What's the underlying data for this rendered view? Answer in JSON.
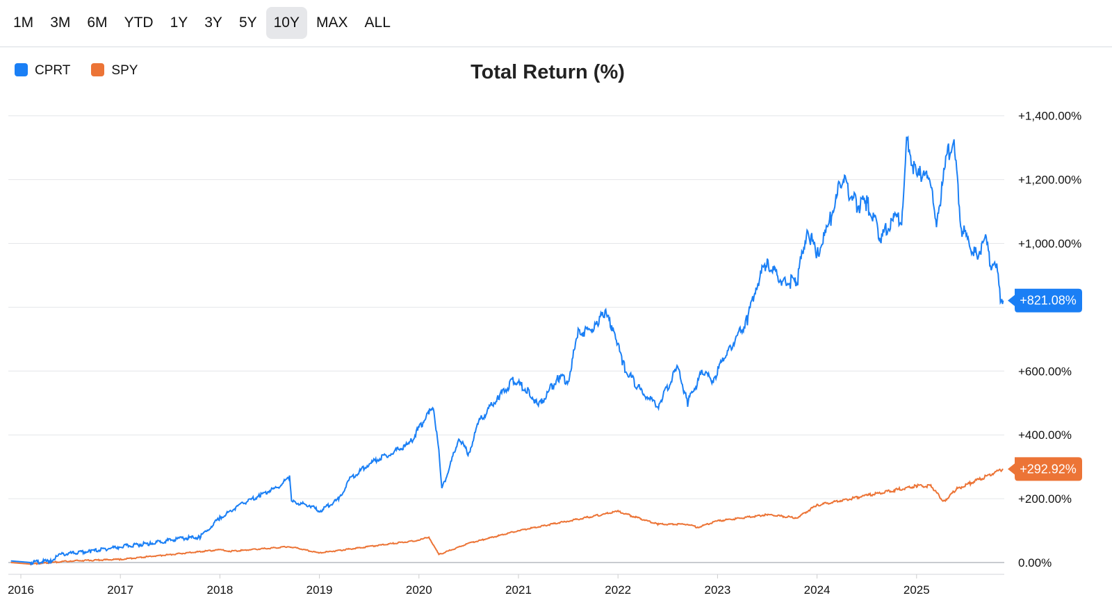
{
  "range_tabs": [
    "1M",
    "3M",
    "6M",
    "YTD",
    "1Y",
    "3Y",
    "5Y",
    "10Y",
    "MAX",
    "ALL"
  ],
  "active_tab": "10Y",
  "chart_data": {
    "type": "line",
    "title": "Total Return (%)",
    "ylim": [
      -20,
      1450
    ],
    "xlim": [
      2015.9,
      2025.87
    ],
    "y_ticks": [
      0,
      200,
      400,
      600,
      800,
      1000,
      1200,
      1400
    ],
    "y_tick_labels": [
      "0.00%",
      "+200.00%",
      "+400.00%",
      "+600.00%",
      "",
      "+1,000.00%",
      "+1,200.00%",
      "+1,400.00%"
    ],
    "x_ticks": [
      2016,
      2017,
      2018,
      2019,
      2020,
      2021,
      2022,
      2023,
      2024,
      2025
    ],
    "x_tick_labels": [
      "2016",
      "2017",
      "2018",
      "2019",
      "2020",
      "2021",
      "2022",
      "2023",
      "2024",
      "2025"
    ],
    "grid": true,
    "legend_position": "top-left",
    "series": [
      {
        "name": "CPRT",
        "color": "#1a7ff5",
        "last_label": "+821.08%",
        "x": [
          2015.9,
          2016.1,
          2016.3,
          2016.4,
          2016.7,
          2017.0,
          2017.3,
          2017.6,
          2017.8,
          2017.9,
          2018.0,
          2018.2,
          2018.4,
          2018.6,
          2018.7,
          2018.72,
          2018.9,
          2019.0,
          2019.2,
          2019.3,
          2019.5,
          2019.7,
          2019.9,
          2020.1,
          2020.15,
          2020.2,
          2020.23,
          2020.3,
          2020.4,
          2020.5,
          2020.6,
          2020.8,
          2020.95,
          2021.1,
          2021.2,
          2021.4,
          2021.5,
          2021.6,
          2021.8,
          2021.85,
          2021.95,
          2022.05,
          2022.2,
          2022.3,
          2022.4,
          2022.6,
          2022.7,
          2022.85,
          2022.95,
          2023.1,
          2023.3,
          2023.4,
          2023.5,
          2023.65,
          2023.8,
          2023.9,
          2024.0,
          2024.1,
          2024.25,
          2024.4,
          2024.5,
          2024.65,
          2024.75,
          2024.85,
          2024.9,
          2025.0,
          2025.1,
          2025.2,
          2025.3,
          2025.37,
          2025.45,
          2025.6,
          2025.7,
          2025.75,
          2025.82,
          2025.85,
          2025.87
        ],
        "y": [
          5,
          0,
          5,
          25,
          35,
          50,
          60,
          75,
          80,
          110,
          140,
          180,
          210,
          240,
          270,
          190,
          180,
          160,
          200,
          260,
          310,
          340,
          370,
          470,
          480,
          350,
          230,
          290,
          390,
          340,
          440,
          520,
          570,
          540,
          490,
          580,
          570,
          720,
          740,
          790,
          740,
          620,
          550,
          520,
          490,
          610,
          500,
          600,
          570,
          660,
          760,
          880,
          940,
          880,
          880,
          1050,
          960,
          1040,
          1200,
          1120,
          1130,
          1010,
          1080,
          1070,
          1330,
          1200,
          1240,
          1070,
          1260,
          1330,
          1050,
          960,
          1010,
          920,
          920,
          800,
          821.08
        ]
      },
      {
        "name": "SPY",
        "color": "#ec7436",
        "last_label": "+292.92%",
        "x": [
          2015.9,
          2016.1,
          2016.5,
          2017.0,
          2018.0,
          2018.1,
          2018.7,
          2019.0,
          2019.5,
          2020.0,
          2020.1,
          2020.2,
          2020.5,
          2021.0,
          2021.5,
          2022.0,
          2022.4,
          2022.7,
          2022.8,
          2023.0,
          2023.5,
          2023.8,
          2024.0,
          2024.5,
          2025.0,
          2025.15,
          2025.27,
          2025.4,
          2025.87
        ],
        "y": [
          0,
          -5,
          5,
          10,
          40,
          35,
          50,
          30,
          50,
          70,
          80,
          25,
          60,
          100,
          130,
          160,
          120,
          120,
          110,
          130,
          150,
          140,
          180,
          210,
          240,
          240,
          190,
          230,
          292.92
        ]
      }
    ]
  }
}
